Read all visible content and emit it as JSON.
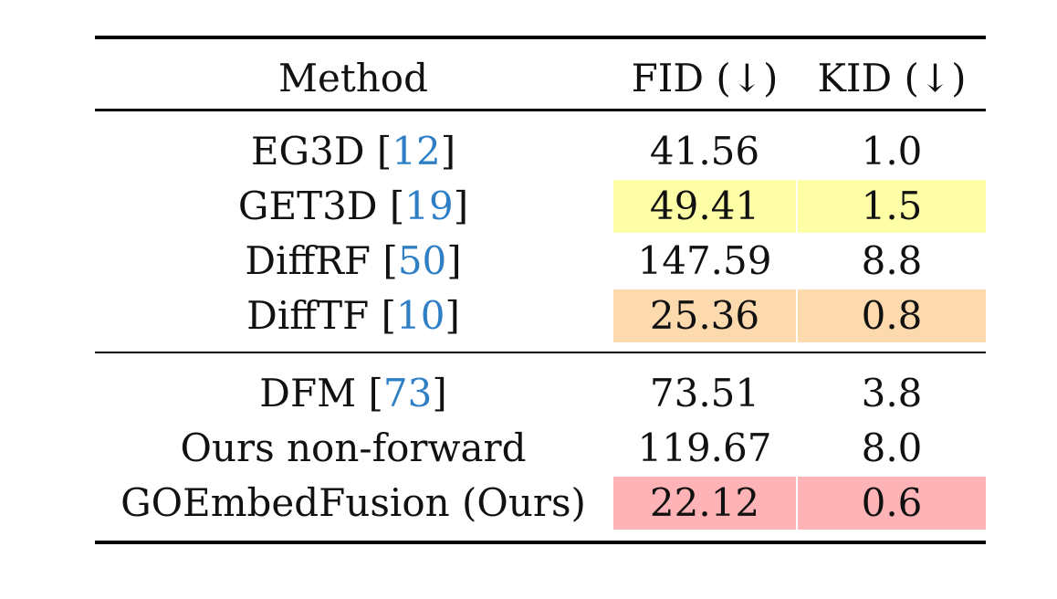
{
  "table": {
    "headers": {
      "method": "Method",
      "fid": "FID (↓)",
      "kid": "KID (↓)"
    },
    "groups": [
      {
        "rows": [
          {
            "name": "EG3D",
            "cite": "12",
            "fid": "41.56",
            "kid": "1.0",
            "highlight": ""
          },
          {
            "name": "GET3D",
            "cite": "19",
            "fid": "49.41",
            "kid": "1.5",
            "highlight": "#fefea6"
          },
          {
            "name": "DiffRF",
            "cite": "50",
            "fid": "147.59",
            "kid": "8.8",
            "highlight": ""
          },
          {
            "name": "DiffTF",
            "cite": "10",
            "fid": "25.36",
            "kid": "0.8",
            "highlight": "#fddaae"
          }
        ]
      },
      {
        "rows": [
          {
            "name": "DFM",
            "cite": "73",
            "fid": "73.51",
            "kid": "3.8",
            "highlight": ""
          },
          {
            "name": "Ours non-forward",
            "cite": "",
            "fid": "119.67",
            "kid": "8.0",
            "highlight": ""
          },
          {
            "name": "GOEmbedFusion (Ours)",
            "cite": "",
            "fid": "22.12",
            "kid": "0.6",
            "highlight": "#feb4b6"
          }
        ]
      }
    ]
  }
}
